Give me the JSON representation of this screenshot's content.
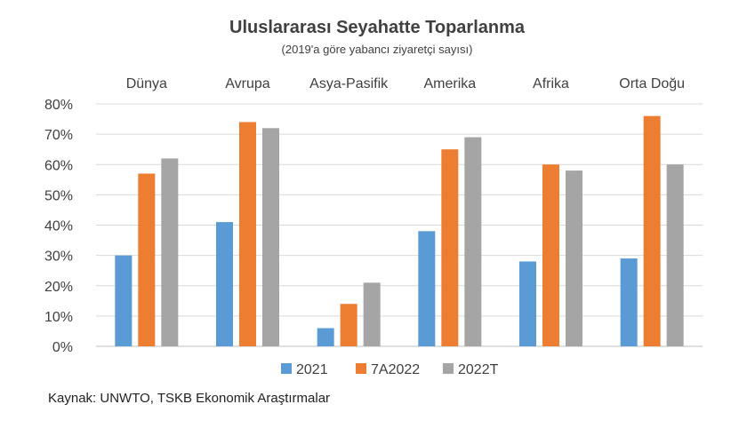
{
  "chart_data": {
    "type": "bar",
    "title": "Uluslararası Seyahatte Toparlanma",
    "subtitle": "(2019'a göre yabancı ziyaretçi sayısı)",
    "categories": [
      "Dünya",
      "Avrupa",
      "Asya-Pasifik",
      "Amerika",
      "Afrika",
      "Orta Doğu"
    ],
    "series": [
      {
        "name": "2021",
        "color": "#5B9BD5",
        "values": [
          30,
          41,
          6,
          38,
          28,
          29
        ]
      },
      {
        "name": "7A2022",
        "color": "#ED7D31",
        "values": [
          57,
          74,
          14,
          65,
          60,
          76
        ]
      },
      {
        "name": "2022T",
        "color": "#A5A5A5",
        "values": [
          62,
          72,
          21,
          69,
          58,
          60
        ]
      }
    ],
    "yticks": [
      "0%",
      "10%",
      "20%",
      "30%",
      "40%",
      "50%",
      "60%",
      "70%",
      "80%"
    ],
    "ylim": [
      0,
      80
    ],
    "grid": true,
    "legend_position": "bottom",
    "category_labels_position": "top"
  },
  "source": "Kaynak: UNWTO, TSKB Ekonomik Araştırmalar"
}
